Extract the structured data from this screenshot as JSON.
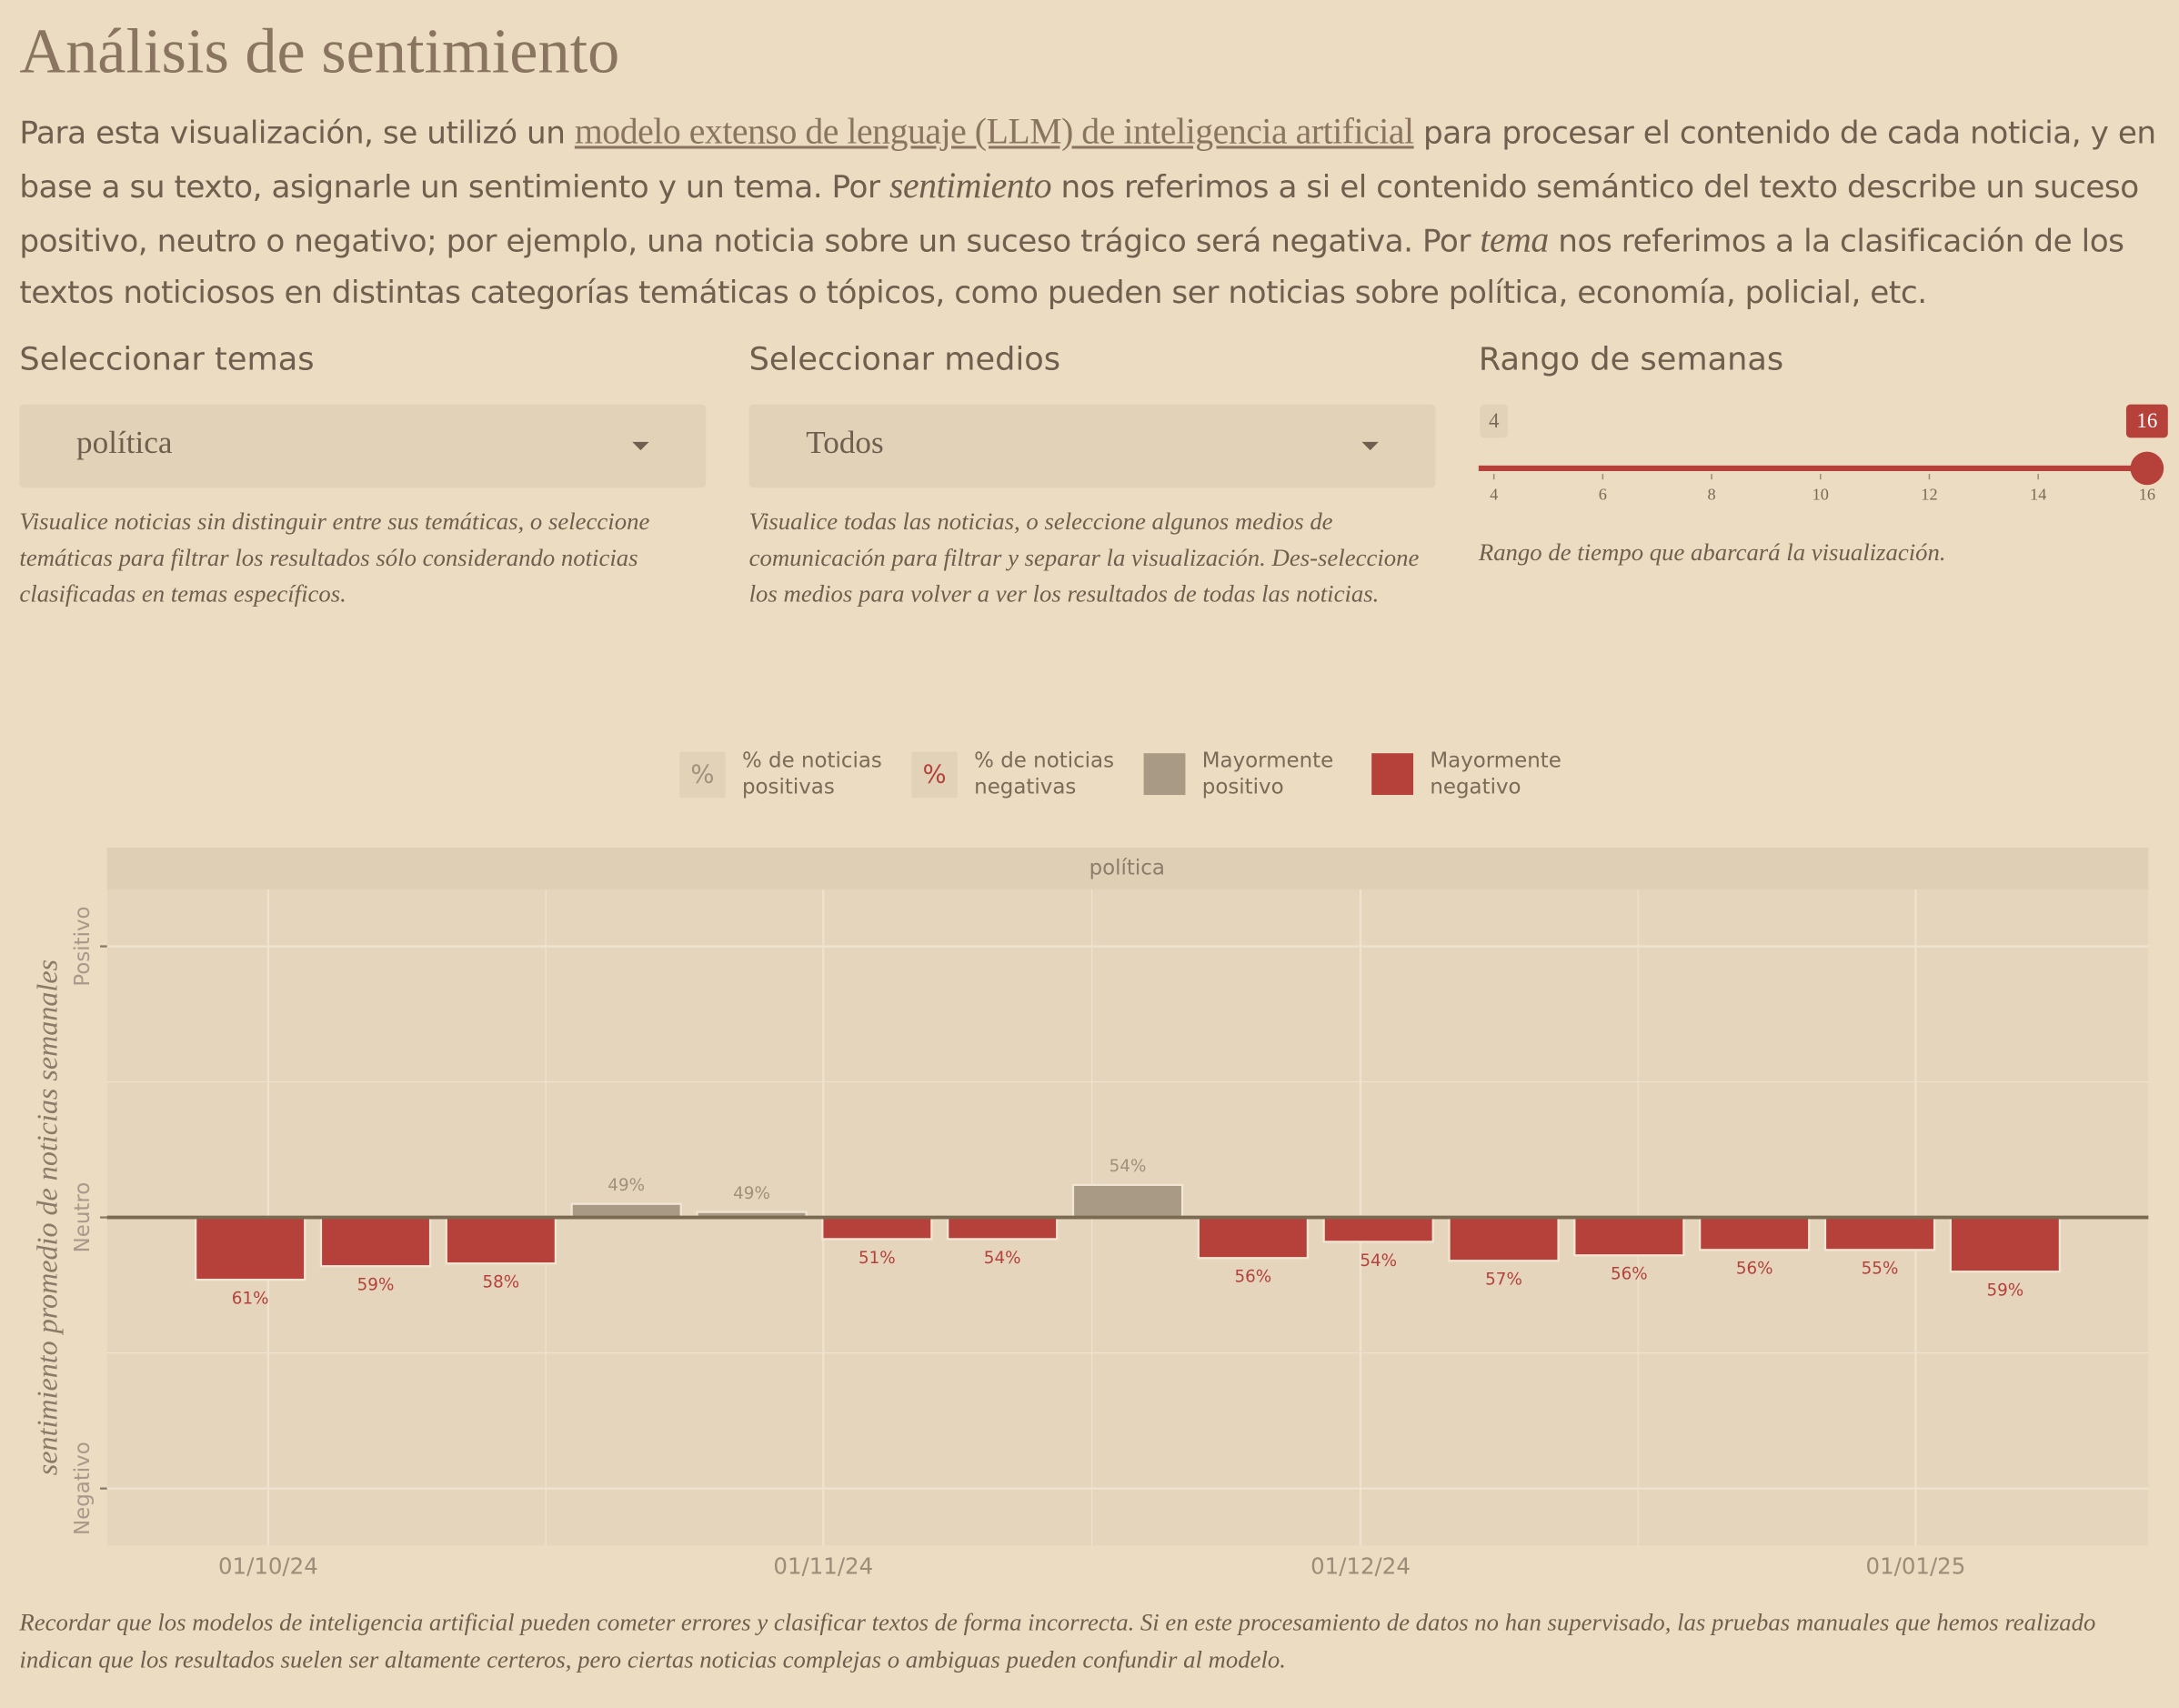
{
  "header": {
    "title": "Análisis de sentimiento",
    "intro": [
      "Para esta visualización, se utilizó un ",
      "modelo extenso de lenguaje (LLM) de inteligencia artificial",
      " para procesar el contenido de cada noticia, y en base a su texto, asignarle un sentimiento y un tema. Por ",
      "sentimiento",
      " nos referimos a si el contenido semántico del texto describe un suceso positivo, neutro o negativo; por ejemplo, una noticia sobre un suceso trágico será negativa. Por ",
      "tema",
      " nos referimos a la clasificación de los textos noticiosos en distintas categorías temáticas o tópicos, como pueden ser noticias sobre política, economía, policial, etc."
    ]
  },
  "controls": {
    "topics": {
      "label": "Seleccionar temas",
      "selected": "política",
      "help": "Visualice noticias sin distinguir entre sus temáticas, o seleccione temáticas para filtrar los resultados sólo considerando noticias clasificadas en temas específicos."
    },
    "outlets": {
      "label": "Seleccionar medios",
      "selected": "Todos",
      "help": "Visualice todas las noticias, o seleccione algunos medios de comunicación para filtrar y separar la visualización. Des-seleccione los medios para volver a ver los resultados de todas las noticias."
    },
    "weeks": {
      "label": "Rango de semanas",
      "min": 4,
      "max": 16,
      "value": [
        4,
        16
      ],
      "ticks": [
        4,
        6,
        8,
        10,
        12,
        14,
        16
      ],
      "help": "Rango de tiempo que abarcará la visualización."
    }
  },
  "chart_data": {
    "type": "bar",
    "facet": "política",
    "y_label": "sentimiento promedio de noticias semanales",
    "legend": [
      {
        "symbol": "%",
        "name": "% de noticias positivas",
        "color": "#a0907c"
      },
      {
        "symbol": "%",
        "name": "% de noticias negativas",
        "color": "#b5413a"
      },
      {
        "name": "Mayormente positivo",
        "color": "#a89a84"
      },
      {
        "name": "Mayormente negativo",
        "color": "#b5413a"
      }
    ],
    "x": [
      "2024-09-30",
      "2024-10-07",
      "2024-10-14",
      "2024-10-21",
      "2024-10-28",
      "2024-11-04",
      "2024-11-11",
      "2024-11-18",
      "2024-11-25",
      "2024-12-02",
      "2024-12-09",
      "2024-12-16",
      "2024-12-23",
      "2024-12-30",
      "2025-01-06"
    ],
    "values": [
      -0.23,
      -0.18,
      -0.17,
      0.05,
      0.02,
      -0.08,
      -0.08,
      0.12,
      -0.15,
      -0.09,
      -0.16,
      -0.14,
      -0.12,
      -0.12,
      -0.2
    ],
    "percent_labels": [
      "61%",
      "59%",
      "58%",
      "49%",
      "49%",
      "51%",
      "54%",
      "54%",
      "56%",
      "54%",
      "57%",
      "56%",
      "56%",
      "55%",
      "59%"
    ],
    "xlim": [
      "2024-09-22",
      "2025-01-14"
    ],
    "xticks": [
      {
        "value": "2024-10-01",
        "label": "01/10/24"
      },
      {
        "value": "2024-11-01",
        "label": "01/11/24"
      },
      {
        "value": "2024-12-01",
        "label": "01/12/24"
      },
      {
        "value": "2025-01-01",
        "label": "01/01/25"
      }
    ],
    "ylim": [
      -1.21,
      1.21
    ],
    "yticks": [
      {
        "value": -1,
        "label": "Negativo"
      },
      {
        "value": 0,
        "label": "Neutro"
      },
      {
        "value": 1,
        "label": "Positivo"
      }
    ],
    "grid": true
  },
  "footer": {
    "note": "Recordar que los modelos de inteligencia artificial pueden cometer errores y clasificar textos de forma incorrecta. Si en este procesamiento de datos no han supervisado, las pruebas manuales que hemos realizado indican que los resultados suelen ser altamente certeros, pero ciertas noticias complejas o ambiguas pueden confundir al modelo."
  }
}
